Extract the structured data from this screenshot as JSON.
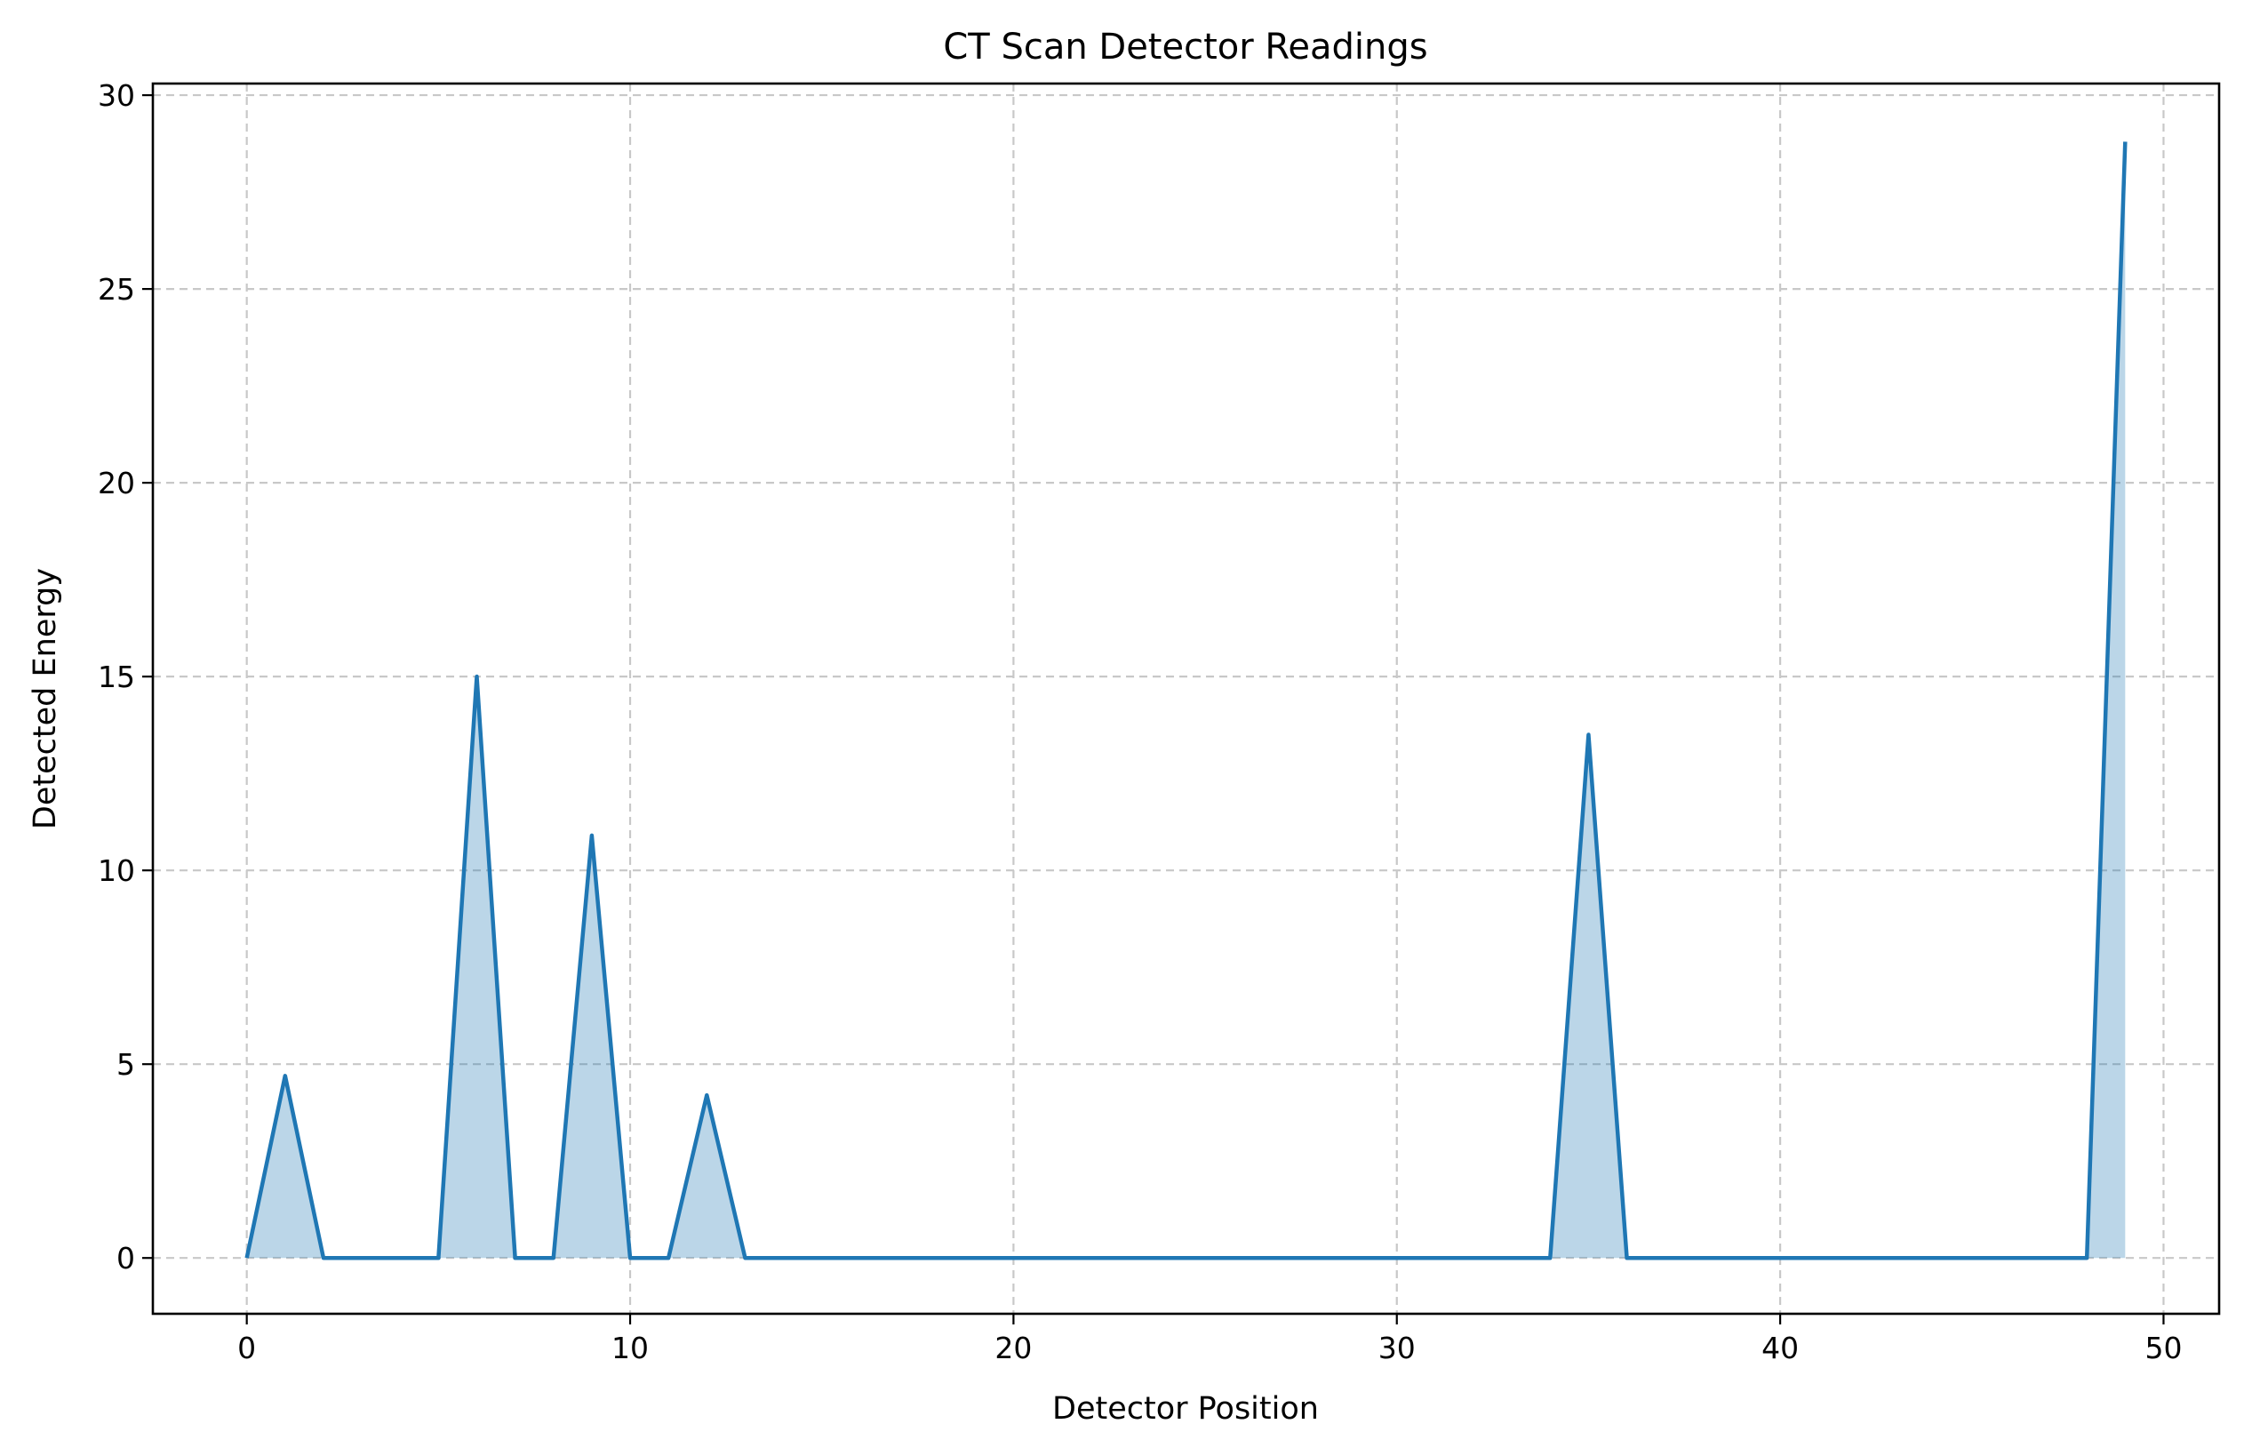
{
  "chart_data": {
    "type": "area",
    "title": "CT Scan Detector Readings",
    "xlabel": "Detector Position",
    "ylabel": "Detected Energy",
    "xlim": [
      -2.45,
      51.45
    ],
    "ylim": [
      -1.44,
      30.3
    ],
    "grid": true,
    "line_color": "#1f77b4",
    "fill_color": "#1f77b4",
    "fill_opacity": 0.3,
    "x_ticks": [
      {
        "value": 0,
        "label": "0"
      },
      {
        "value": 10,
        "label": "10"
      },
      {
        "value": 20,
        "label": "20"
      },
      {
        "value": 30,
        "label": "30"
      },
      {
        "value": 40,
        "label": "40"
      },
      {
        "value": 50,
        "label": "50"
      }
    ],
    "y_ticks": [
      {
        "value": 0,
        "label": "0"
      },
      {
        "value": 5,
        "label": "5"
      },
      {
        "value": 10,
        "label": "10"
      },
      {
        "value": 15,
        "label": "15"
      },
      {
        "value": 20,
        "label": "20"
      },
      {
        "value": 25,
        "label": "25"
      },
      {
        "value": 30,
        "label": "30"
      }
    ],
    "x": [
      0,
      1,
      2,
      3,
      4,
      5,
      6,
      7,
      8,
      9,
      10,
      11,
      12,
      13,
      14,
      15,
      16,
      17,
      18,
      19,
      20,
      21,
      22,
      23,
      24,
      25,
      26,
      27,
      28,
      29,
      30,
      31,
      32,
      33,
      34,
      35,
      36,
      37,
      38,
      39,
      40,
      41,
      42,
      43,
      44,
      45,
      46,
      47,
      48,
      49
    ],
    "values": [
      0,
      4.7,
      0,
      0,
      0,
      0,
      15.0,
      0,
      0,
      10.9,
      0,
      0,
      4.2,
      0,
      0,
      0,
      0,
      0,
      0,
      0,
      0,
      0,
      0,
      0,
      0,
      0,
      0,
      0,
      0,
      0,
      0,
      0,
      0,
      0,
      0,
      13.5,
      0,
      0,
      0,
      0,
      0,
      0,
      0,
      0,
      0,
      0,
      0,
      0,
      0,
      28.8
    ]
  }
}
